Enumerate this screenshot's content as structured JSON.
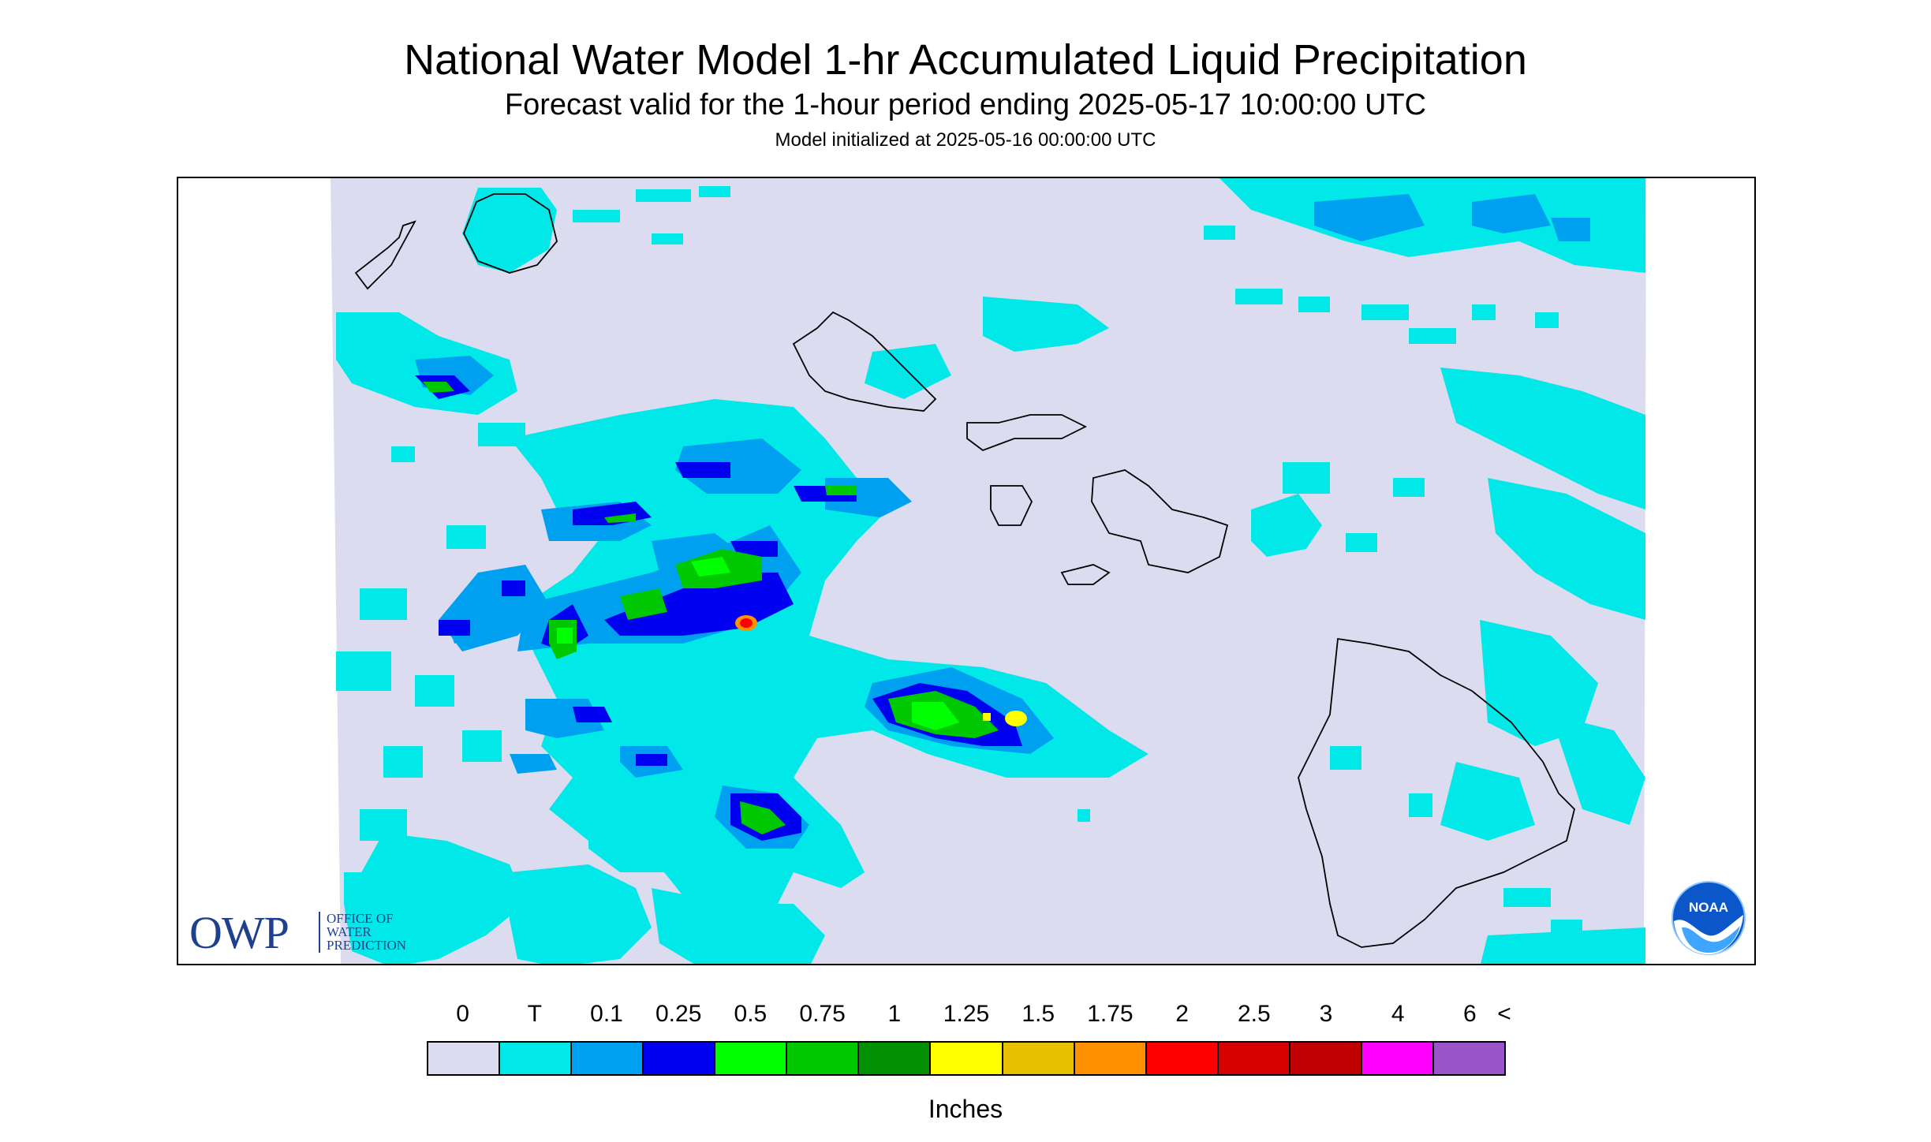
{
  "header": {
    "title": "National Water Model 1-hr Accumulated Liquid Precipitation",
    "subtitle": "Forecast valid for the 1-hour period ending 2025-05-17 10:00:00 UTC",
    "init": "Model initialized at 2025-05-16 00:00:00 UTC"
  },
  "logos": {
    "owp_mark": "OWP",
    "owp_lines": [
      "OFFICE OF",
      "WATER",
      "PREDICTION"
    ],
    "noaa": "NOAA"
  },
  "legend": {
    "labels": [
      "0",
      "T",
      "0.1",
      "0.25",
      "0.5",
      "0.75",
      "1",
      "1.25",
      "1.5",
      "1.75",
      "2",
      "2.5",
      "3",
      "4",
      "6",
      "<"
    ],
    "colors": [
      "#dcdcf0",
      "#00e8e8",
      "#00a0f0",
      "#0000f0",
      "#00ff00",
      "#00c800",
      "#009000",
      "#ffff00",
      "#e7c000",
      "#ff9000",
      "#ff0000",
      "#d60000",
      "#c00000",
      "#ff00ff",
      "#9955c9"
    ],
    "units": "Inches"
  },
  "map": {
    "background": "#dcdcf0",
    "outside": "#ffffff"
  }
}
